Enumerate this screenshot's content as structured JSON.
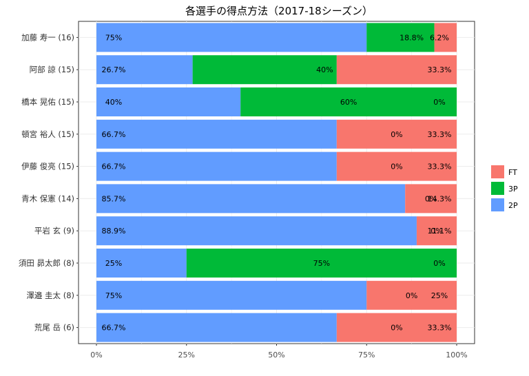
{
  "chart_data": {
    "type": "bar",
    "orientation": "horizontal",
    "stacked": true,
    "title": "各選手の得点方法（2017-18シーズン）",
    "xlabel": "",
    "ylabel": "",
    "xlim": [
      0,
      1
    ],
    "x_ticks": [
      "0%",
      "25%",
      "50%",
      "75%",
      "100%"
    ],
    "grid": true,
    "legend_position": "right",
    "categories": [
      "加藤 寿一 (16)",
      "阿部 諒 (15)",
      "橋本 晃佑 (15)",
      "頓宮 裕人 (15)",
      "伊藤 俊亮 (15)",
      "青木 保憲 (14)",
      "平岩 玄 (9)",
      "須田 昴太郎 (8)",
      "澤邉 圭太 (8)",
      "荒尾 岳 (6)"
    ],
    "series": [
      {
        "name": "2P",
        "color": "#619CFF",
        "values": [
          0.75,
          0.267,
          0.4,
          0.667,
          0.667,
          0.857,
          0.889,
          0.25,
          0.75,
          0.667
        ],
        "labels": [
          "75%",
          "26.7%",
          "40%",
          "66.7%",
          "66.7%",
          "85.7%",
          "88.9%",
          "25%",
          "75%",
          "66.7%"
        ]
      },
      {
        "name": "3P",
        "color": "#00BA38",
        "values": [
          0.188,
          0.4,
          0.6,
          0,
          0,
          0,
          0,
          0.75,
          0,
          0
        ],
        "labels": [
          "18.8%",
          "40%",
          "60%",
          "0%",
          "0%",
          "0%",
          "0%",
          "75%",
          "0%",
          "0%"
        ]
      },
      {
        "name": "FT",
        "color": "#F8766D",
        "values": [
          0.062,
          0.333,
          0,
          0.333,
          0.333,
          0.143,
          0.111,
          0,
          0.25,
          0.333
        ],
        "labels": [
          "6.2%",
          "33.3%",
          "0%",
          "33.3%",
          "33.3%",
          "14.3%",
          "11.1%",
          "0%",
          "25%",
          "33.3%"
        ]
      }
    ],
    "legend_order": [
      "FT",
      "3P",
      "2P"
    ]
  }
}
